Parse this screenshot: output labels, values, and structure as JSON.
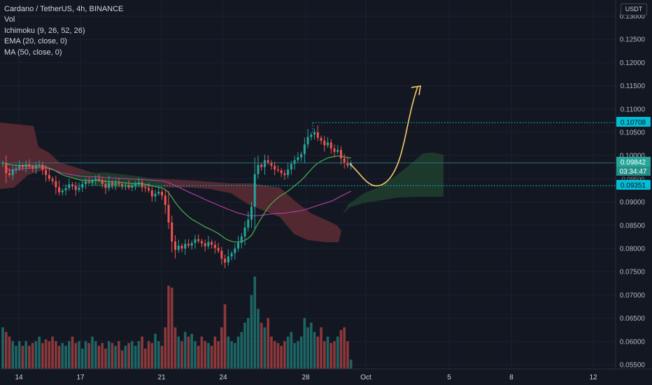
{
  "legend": {
    "symbol": "Cardano / TetherUS, 4h, BINANCE",
    "vol": "Vol",
    "ichimoku": "Ichimoku (9, 26, 52, 26)",
    "ema": "EMA (20, close, 0)",
    "ma": "MA (50, close, 0)"
  },
  "currency_label": "USDT",
  "colors": {
    "background": "#131722",
    "up": "#26a69a",
    "down": "#ef5350",
    "ema": "#4caf50",
    "ma": "#b03c9c",
    "projection": "#f7c96a",
    "level": "#00bcd4",
    "cloud_bear": "#5a2a33",
    "cloud_bull": "#1d3b2c"
  },
  "chart_data": {
    "type": "candlestick",
    "yaxis": {
      "ylim": [
        0.0545,
        0.1315
      ],
      "ticks": [
        "0.13000",
        "0.12500",
        "0.12000",
        "0.11500",
        "0.11000",
        "0.10500",
        "0.10000",
        "0.09500",
        "0.09000",
        "0.08500",
        "0.08000",
        "0.07500",
        "0.07000",
        "0.06500",
        "0.06000",
        "0.05500"
      ]
    },
    "xaxis": {
      "ticks": [
        "14",
        "17",
        "21",
        "24",
        "28",
        "Oct",
        "5",
        "8",
        "12"
      ]
    },
    "price_labels": {
      "level_high": "0.10708",
      "current": "0.09842",
      "countdown": "03:34:47",
      "level_low": "0.09351",
      "hidden_partial": "0.09500"
    },
    "levels": {
      "high": 0.10708,
      "low": 0.09351,
      "current": 0.09842
    },
    "close": [
      0.0985,
      0.0962,
      0.0958,
      0.097,
      0.0972,
      0.0978,
      0.0975,
      0.0981,
      0.0976,
      0.0972,
      0.0978,
      0.098,
      0.0969,
      0.0958,
      0.095,
      0.0945,
      0.0932,
      0.0921,
      0.0925,
      0.093,
      0.0938,
      0.0934,
      0.0926,
      0.0931,
      0.0939,
      0.0944,
      0.0942,
      0.0946,
      0.095,
      0.0947,
      0.0939,
      0.093,
      0.0942,
      0.0936,
      0.0941,
      0.0938,
      0.0934,
      0.0936,
      0.0931,
      0.0935,
      0.0938,
      0.0942,
      0.0932,
      0.093,
      0.0925,
      0.0912,
      0.0918,
      0.0922,
      0.0914,
      0.0894,
      0.0856,
      0.0815,
      0.0797,
      0.0806,
      0.08,
      0.081,
      0.0806,
      0.0812,
      0.082,
      0.0816,
      0.0811,
      0.0805,
      0.0814,
      0.0808,
      0.0801,
      0.0795,
      0.0778,
      0.077,
      0.0783,
      0.079,
      0.08,
      0.0812,
      0.0826,
      0.0845,
      0.0862,
      0.089,
      0.096,
      0.098,
      0.0975,
      0.099,
      0.0985,
      0.0978,
      0.097,
      0.0968,
      0.0962,
      0.0958,
      0.097,
      0.0982,
      0.099,
      0.0996,
      0.1003,
      0.1024,
      0.104,
      0.1045,
      0.105,
      0.1038,
      0.1032,
      0.1022,
      0.1028,
      0.1015,
      0.1008,
      0.1012,
      0.0994,
      0.0985,
      0.0978,
      0.0984
    ],
    "volume_rel": [
      0.45,
      0.4,
      0.35,
      0.3,
      0.25,
      0.3,
      0.25,
      0.3,
      0.25,
      0.28,
      0.3,
      0.35,
      0.28,
      0.32,
      0.3,
      0.35,
      0.3,
      0.25,
      0.28,
      0.25,
      0.3,
      0.35,
      0.28,
      0.3,
      0.22,
      0.3,
      0.28,
      0.35,
      0.3,
      0.25,
      0.28,
      0.22,
      0.3,
      0.28,
      0.25,
      0.3,
      0.2,
      0.25,
      0.28,
      0.3,
      0.25,
      0.3,
      0.35,
      0.22,
      0.3,
      0.28,
      0.38,
      0.3,
      0.25,
      0.45,
      0.9,
      0.88,
      0.45,
      0.35,
      0.3,
      0.4,
      0.35,
      0.38,
      0.3,
      0.25,
      0.35,
      0.3,
      0.28,
      0.25,
      0.35,
      0.3,
      0.45,
      0.7,
      0.35,
      0.3,
      0.28,
      0.35,
      0.4,
      0.5,
      0.55,
      0.8,
      1.0,
      0.65,
      0.5,
      0.45,
      0.55,
      0.35,
      0.3,
      0.28,
      0.25,
      0.3,
      0.35,
      0.4,
      0.28,
      0.3,
      0.35,
      0.55,
      0.45,
      0.5,
      0.4,
      0.35,
      0.45,
      0.3,
      0.35,
      0.28,
      0.3,
      0.35,
      0.42,
      0.45,
      0.3,
      0.1
    ],
    "projection": [
      0.0983,
      0.0962,
      0.0943,
      0.0933,
      0.0938,
      0.0955,
      0.0985,
      0.103,
      0.1075,
      0.112,
      0.1148
    ],
    "projection_arrow_tip": 0.113
  }
}
